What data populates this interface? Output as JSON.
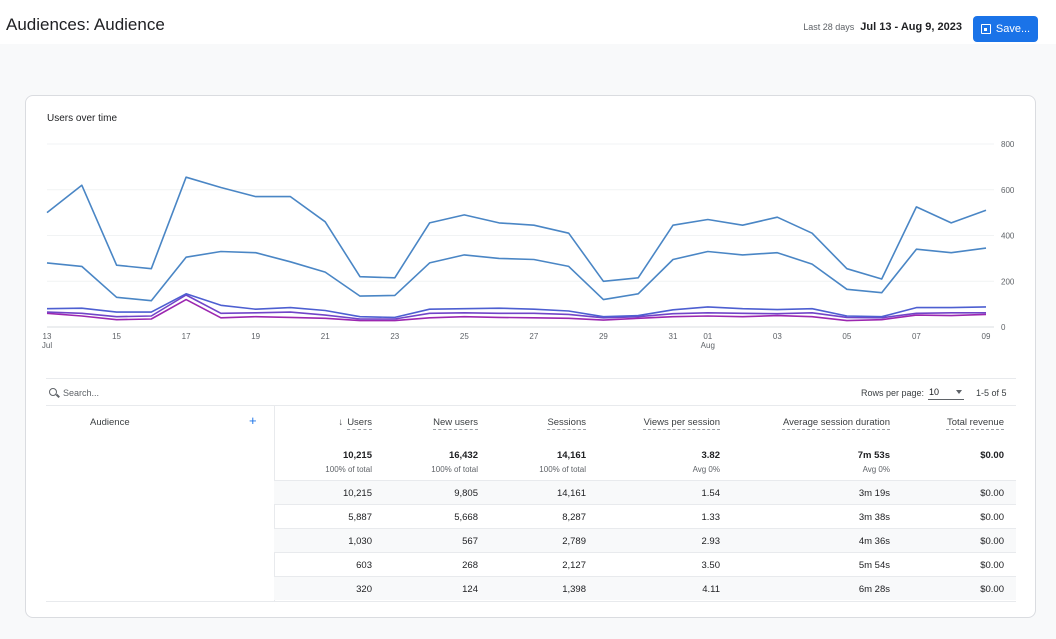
{
  "header": {
    "title": "Audiences: Audience",
    "date_prefix": "Last 28 days",
    "date_range": "Jul 13 - Aug 9, 2023",
    "save_label": "Save..."
  },
  "chart": {
    "title": "Users over time"
  },
  "chart_data": {
    "type": "line",
    "x": [
      "Jul 13",
      "Jul 14",
      "Jul 15",
      "Jul 16",
      "Jul 17",
      "Jul 18",
      "Jul 19",
      "Jul 20",
      "Jul 21",
      "Jul 22",
      "Jul 23",
      "Jul 24",
      "Jul 25",
      "Jul 26",
      "Jul 27",
      "Jul 28",
      "Jul 29",
      "Jul 30",
      "Jul 31",
      "Aug 1",
      "Aug 2",
      "Aug 3",
      "Aug 4",
      "Aug 5",
      "Aug 6",
      "Aug 7",
      "Aug 8",
      "Aug 9"
    ],
    "tick_labels": [
      {
        "index": 0,
        "label": "13",
        "sub": "Jul"
      },
      {
        "index": 2,
        "label": "15"
      },
      {
        "index": 4,
        "label": "17"
      },
      {
        "index": 6,
        "label": "19"
      },
      {
        "index": 8,
        "label": "21"
      },
      {
        "index": 10,
        "label": "23"
      },
      {
        "index": 12,
        "label": "25"
      },
      {
        "index": 14,
        "label": "27"
      },
      {
        "index": 16,
        "label": "29"
      },
      {
        "index": 18,
        "label": "31"
      },
      {
        "index": 19,
        "label": "01",
        "sub": "Aug"
      },
      {
        "index": 21,
        "label": "03"
      },
      {
        "index": 23,
        "label": "05"
      },
      {
        "index": 25,
        "label": "07"
      },
      {
        "index": 27,
        "label": "09"
      }
    ],
    "y_ticks": [
      "0",
      "200",
      "400",
      "600",
      "800"
    ],
    "ylim": [
      0,
      800
    ],
    "grid": true,
    "series": [
      {
        "color": "#4a86c5",
        "values": [
          500,
          620,
          270,
          255,
          655,
          610,
          570,
          570,
          460,
          220,
          215,
          455,
          490,
          455,
          445,
          410,
          200,
          215,
          445,
          470,
          445,
          480,
          410,
          255,
          210,
          525,
          455,
          510
        ]
      },
      {
        "color": "#4a86c5",
        "values": [
          280,
          265,
          130,
          115,
          305,
          330,
          325,
          285,
          240,
          135,
          138,
          280,
          315,
          300,
          295,
          265,
          120,
          145,
          295,
          330,
          315,
          325,
          275,
          165,
          150,
          340,
          325,
          345
        ]
      },
      {
        "color": "#4d5fd1",
        "values": [
          80,
          82,
          65,
          65,
          145,
          95,
          78,
          85,
          72,
          45,
          42,
          78,
          80,
          82,
          78,
          70,
          45,
          50,
          75,
          88,
          80,
          76,
          80,
          48,
          45,
          85,
          85,
          88
        ]
      },
      {
        "color": "#7145c8",
        "values": [
          65,
          60,
          45,
          48,
          140,
          60,
          62,
          65,
          52,
          35,
          35,
          60,
          62,
          60,
          60,
          55,
          40,
          45,
          58,
          62,
          60,
          58,
          62,
          42,
          40,
          60,
          62,
          62
        ]
      },
      {
        "color": "#9c27b0",
        "values": [
          60,
          48,
          32,
          35,
          120,
          40,
          45,
          42,
          38,
          28,
          28,
          40,
          45,
          42,
          40,
          38,
          30,
          38,
          45,
          48,
          45,
          50,
          45,
          28,
          32,
          52,
          50,
          55
        ]
      }
    ]
  },
  "search": {
    "placeholder": "Search..."
  },
  "pager": {
    "rows_label": "Rows per page:",
    "rows_value": "10",
    "range": "1-5 of 5"
  },
  "table": {
    "dimension_header": "Audience",
    "columns": [
      "Users",
      "New users",
      "Sessions",
      "Views per session",
      "Average session duration",
      "Total revenue"
    ],
    "totals": [
      {
        "value": "10,215",
        "sub": "100% of total"
      },
      {
        "value": "16,432",
        "sub": "100% of total"
      },
      {
        "value": "14,161",
        "sub": "100% of total"
      },
      {
        "value": "3.82",
        "sub": "Avg 0%"
      },
      {
        "value": "7m 53s",
        "sub": "Avg 0%"
      },
      {
        "value": "$0.00",
        "sub": ""
      }
    ],
    "rows": [
      [
        "10,215",
        "9,805",
        "14,161",
        "1.54",
        "3m 19s",
        "$0.00"
      ],
      [
        "5,887",
        "5,668",
        "8,287",
        "1.33",
        "3m 38s",
        "$0.00"
      ],
      [
        "1,030",
        "567",
        "2,789",
        "2.93",
        "4m 36s",
        "$0.00"
      ],
      [
        "603",
        "268",
        "2,127",
        "3.50",
        "5m 54s",
        "$0.00"
      ],
      [
        "320",
        "124",
        "1,398",
        "4.11",
        "6m 28s",
        "$0.00"
      ]
    ]
  }
}
